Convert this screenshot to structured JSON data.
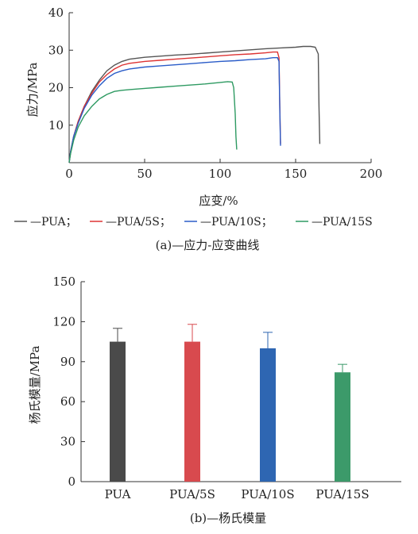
{
  "chart_data": [
    {
      "type": "line",
      "caption": "(a)—应力-应变曲线",
      "xlabel": "应变/%",
      "ylabel": "应力/MPa",
      "xlim": [
        0,
        200
      ],
      "ylim": [
        0,
        40
      ],
      "xticks": [
        "0",
        "50",
        "100",
        "150",
        "200"
      ],
      "yticks": [
        "10",
        "20",
        "30",
        "40"
      ],
      "grid": false,
      "legend_position": "bottom",
      "series": [
        {
          "name": "PUA；",
          "color": "#555555",
          "x": [
            0,
            1,
            3,
            6,
            10,
            15,
            20,
            25,
            30,
            35,
            40,
            50,
            60,
            70,
            80,
            90,
            100,
            110,
            120,
            130,
            140,
            150,
            155,
            160,
            163,
            165,
            165.5,
            166
          ],
          "y": [
            0,
            3,
            7,
            11,
            15,
            19,
            22,
            24.5,
            26,
            27,
            27.6,
            28.1,
            28.4,
            28.7,
            28.9,
            29.2,
            29.5,
            29.8,
            30.1,
            30.4,
            30.6,
            30.8,
            31,
            31,
            30.8,
            29,
            15,
            5
          ]
        },
        {
          "name": "PUA/5S；",
          "color": "#dd3333",
          "x": [
            0,
            1,
            3,
            6,
            10,
            15,
            20,
            25,
            30,
            35,
            40,
            50,
            60,
            70,
            80,
            90,
            100,
            110,
            120,
            130,
            135,
            138,
            139,
            139.5,
            140
          ],
          "y": [
            0,
            3,
            7,
            11,
            15,
            18.5,
            21.5,
            23.5,
            25,
            26,
            26.5,
            27,
            27.3,
            27.6,
            27.9,
            28.2,
            28.5,
            28.8,
            29,
            29.3,
            29.5,
            29.5,
            28,
            15,
            5
          ]
        },
        {
          "name": "PUA/10S；",
          "color": "#2a5cc8",
          "x": [
            0,
            1,
            3,
            6,
            10,
            15,
            20,
            25,
            30,
            35,
            40,
            50,
            60,
            70,
            80,
            90,
            100,
            110,
            120,
            130,
            135,
            138,
            139,
            139.5,
            140
          ],
          "y": [
            0,
            3,
            7,
            10.5,
            14.5,
            18,
            20.5,
            22.5,
            23.8,
            24.5,
            25,
            25.5,
            25.8,
            26.1,
            26.4,
            26.7,
            27,
            27.2,
            27.5,
            27.7,
            28,
            28,
            27,
            14,
            4.5
          ]
        },
        {
          "name": "PUA/15S",
          "color": "#2e9a62",
          "x": [
            0,
            1,
            3,
            6,
            10,
            15,
            20,
            25,
            30,
            35,
            40,
            50,
            60,
            70,
            80,
            90,
            100,
            105,
            108,
            109,
            110,
            110.5,
            111
          ],
          "y": [
            0,
            2.5,
            6,
            9.5,
            12.5,
            15,
            17,
            18.2,
            19,
            19.3,
            19.5,
            19.8,
            20.1,
            20.4,
            20.7,
            21,
            21.4,
            21.6,
            21.5,
            20,
            13,
            7,
            3.5
          ]
        }
      ]
    },
    {
      "type": "bar",
      "caption": "(b)—杨氏模量",
      "ylabel": "杨氏模量/MPa",
      "ylim": [
        0,
        150
      ],
      "yticks": [
        "0",
        "30",
        "60",
        "90",
        "120",
        "150"
      ],
      "categories": [
        "PUA",
        "PUA/5S",
        "PUA/10S",
        "PUA/15S"
      ],
      "values": [
        105,
        105,
        100,
        82
      ],
      "errors": [
        10,
        13,
        12,
        6
      ],
      "colors": [
        "#4a4a4a",
        "#d84a4e",
        "#2e66b2",
        "#3c9a6a"
      ],
      "grid": false
    }
  ]
}
